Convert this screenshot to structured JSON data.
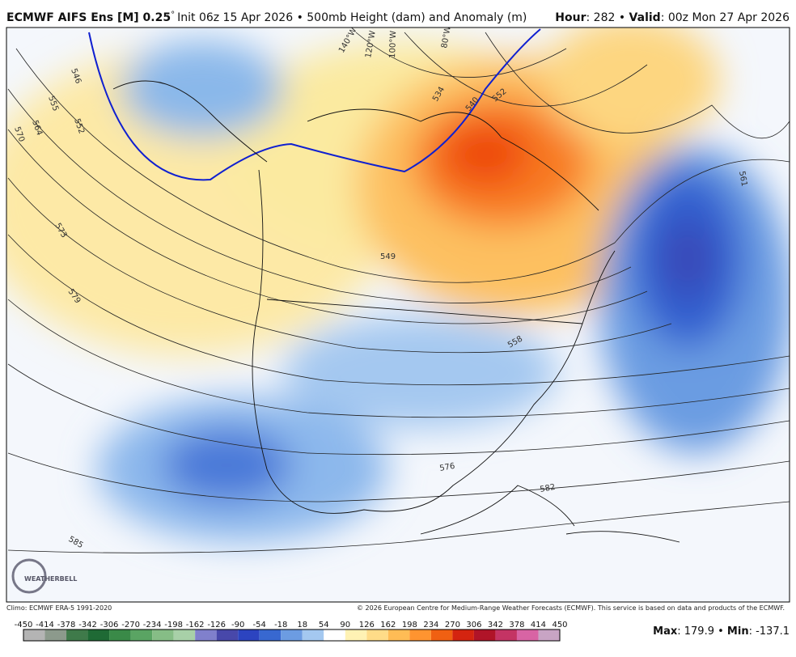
{
  "header": {
    "model": "ECMWF AIFS Ens [M] 0.25",
    "degree": "°",
    "init": "Init 06z 15 Apr 2026 • 500mb Height (dam) and Anomaly (m)",
    "hour_label": "Hour",
    "hour": ": 282 • ",
    "valid_label": "Valid",
    "valid": ": 00z Mon 27 Apr 2026"
  },
  "map": {
    "contour_labels": [
      "546",
      "555",
      "564",
      "570",
      "552",
      "573",
      "579",
      "585",
      "549",
      "534",
      "540",
      "552",
      "558",
      "561",
      "576",
      "582"
    ],
    "longitude_labels": [
      "140°W",
      "120°W",
      "100°W",
      "80°W"
    ],
    "logo": "WEATHERBELL"
  },
  "footer": {
    "climo": "Climo: ECMWF ERA-5 1991-2020",
    "copyright": "© 2026 European Centre for Medium-Range Weather Forecasts (ECMWF). This service is based on data and products of the ECMWF.",
    "max_label": "Max",
    "max": ": 179.9 • ",
    "min_label": "Min",
    "min": ": -137.1"
  },
  "colorbar": {
    "labels": [
      "-450",
      "-414",
      "-378",
      "-342",
      "-306",
      "-270",
      "-234",
      "-198",
      "-162",
      "-126",
      "-90",
      "-54",
      "-18",
      "18",
      "54",
      "90",
      "126",
      "162",
      "198",
      "234",
      "270",
      "306",
      "342",
      "378",
      "414",
      "450"
    ],
    "colors": [
      "#b4b4b4",
      "#8c9a8c",
      "#3f7a4a",
      "#1f6a35",
      "#3a8a48",
      "#5aa463",
      "#86bd86",
      "#a8d0a8",
      "#8080cc",
      "#4848aa",
      "#2c44c0",
      "#3868d0",
      "#6c9ce2",
      "#a4c8f0",
      "#ffffff",
      "#fff2b4",
      "#ffdc88",
      "#ffbc55",
      "#ff9430",
      "#f06012",
      "#d42410",
      "#b01428",
      "#c43464",
      "#d864a4",
      "#c8a4c4"
    ]
  }
}
